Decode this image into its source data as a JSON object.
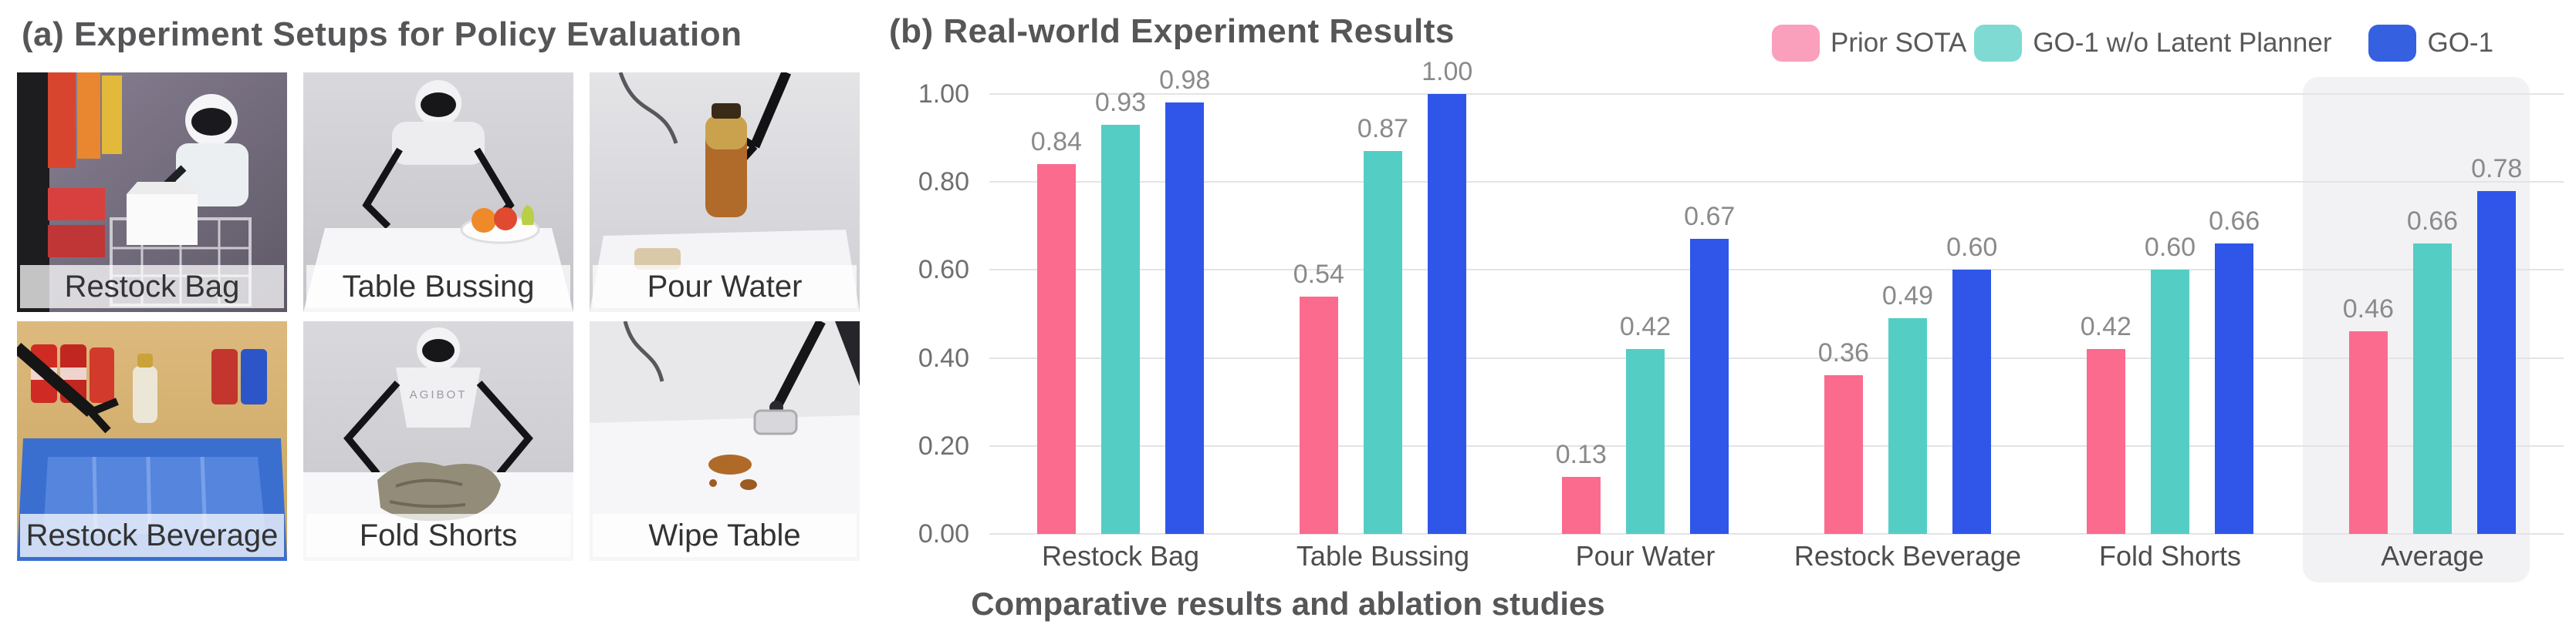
{
  "panel_a": {
    "title": "(a) Experiment Setups for Policy Evaluation",
    "robot_brand": "AGIBOT",
    "setups": [
      {
        "label": "Restock Bag"
      },
      {
        "label": "Table Bussing"
      },
      {
        "label": "Pour Water"
      },
      {
        "label": "Restock Beverage"
      },
      {
        "label": "Fold Shorts"
      },
      {
        "label": "Wipe Table"
      }
    ]
  },
  "panel_b": {
    "title": "(b) Real-world Experiment Results",
    "caption": "Comparative results and ablation studies"
  },
  "chart_data": {
    "type": "bar",
    "title": "(b) Real-world Experiment Results",
    "categories": [
      "Restock Bag",
      "Table Bussing",
      "Pour Water",
      "Restock Beverage",
      "Fold Shorts",
      "Average"
    ],
    "series": [
      {
        "name": "Prior SOTA",
        "bar_color": "#FB6B8E",
        "legend_color": "#FA9FBC",
        "values": [
          0.84,
          0.54,
          0.13,
          0.36,
          0.42,
          0.46
        ]
      },
      {
        "name": "GO-1 w/o Latent Planner",
        "bar_color": "#54CEC4",
        "legend_color": "#7FDAD3",
        "values": [
          0.93,
          0.87,
          0.42,
          0.49,
          0.6,
          0.66
        ]
      },
      {
        "name": "GO-1",
        "bar_color": "#2F56E8",
        "legend_color": "#3560E0",
        "values": [
          0.98,
          1.0,
          0.67,
          0.6,
          0.66,
          0.78
        ]
      }
    ],
    "yticks": [
      "1.00",
      "0.80",
      "0.60",
      "0.40",
      "0.20",
      "0.00"
    ],
    "ylim": [
      0,
      1.0
    ],
    "grid": true,
    "legend_position": "top-right",
    "highlight_category": "Average",
    "xlabel": "",
    "ylabel": ""
  },
  "colors": {
    "highlight_bg": "#f2f2f4",
    "gridline": "#e4e4e7",
    "axis_text": "#6f6f72",
    "value_label_text": "#8a8a8d",
    "category_text": "#4d4d4f",
    "title_text": "#565658"
  }
}
